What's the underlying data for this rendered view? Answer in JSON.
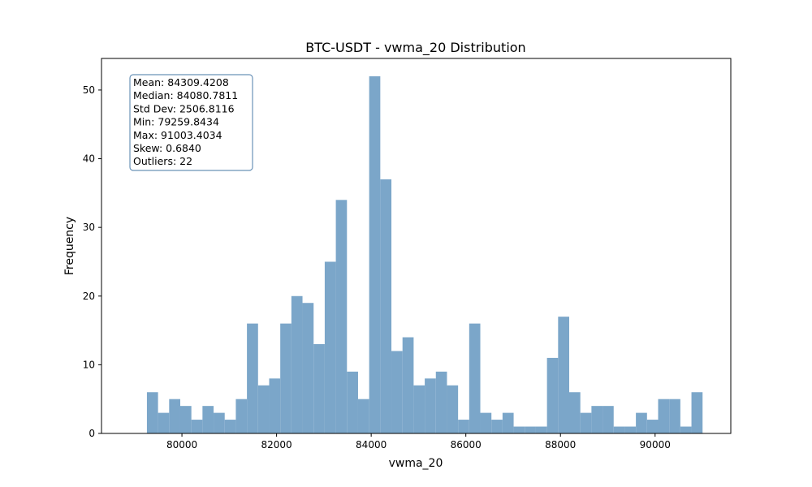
{
  "chart_data": {
    "type": "bar",
    "title": "BTC-USDT - vwma_20 Distribution",
    "xlabel": "vwma_20",
    "ylabel": "Frequency",
    "xlim": [
      78300,
      91600
    ],
    "ylim": [
      0,
      54.6
    ],
    "x_ticks": [
      80000,
      82000,
      84000,
      86000,
      88000,
      90000
    ],
    "x_tick_labels": [
      "80000",
      "82000",
      "84000",
      "86000",
      "88000",
      "90000"
    ],
    "y_ticks": [
      0,
      10,
      20,
      30,
      40,
      50
    ],
    "y_tick_labels": [
      "0",
      "10",
      "20",
      "30",
      "40",
      "50"
    ],
    "bin_start": 79259.8434,
    "bin_end": 91003.4034,
    "counts": [
      6,
      3,
      5,
      4,
      2,
      4,
      3,
      2,
      5,
      16,
      7,
      8,
      16,
      20,
      19,
      13,
      25,
      34,
      9,
      5,
      52,
      37,
      12,
      14,
      7,
      8,
      9,
      7,
      2,
      16,
      3,
      2,
      3,
      1,
      1,
      1,
      11,
      17,
      6,
      3,
      4,
      4,
      1,
      1,
      3,
      2,
      5,
      5,
      1,
      6
    ],
    "bar_color": "#7ba6c9",
    "grid": false,
    "stats_box": {
      "lines": [
        "Mean: 84309.4208",
        "Median: 84080.7811",
        "Std Dev: 2506.8116",
        "Min: 79259.8434",
        "Max: 91003.4034",
        "Skew: 0.6840",
        "Outliers: 22"
      ],
      "border_color": "#6b93b8"
    }
  }
}
